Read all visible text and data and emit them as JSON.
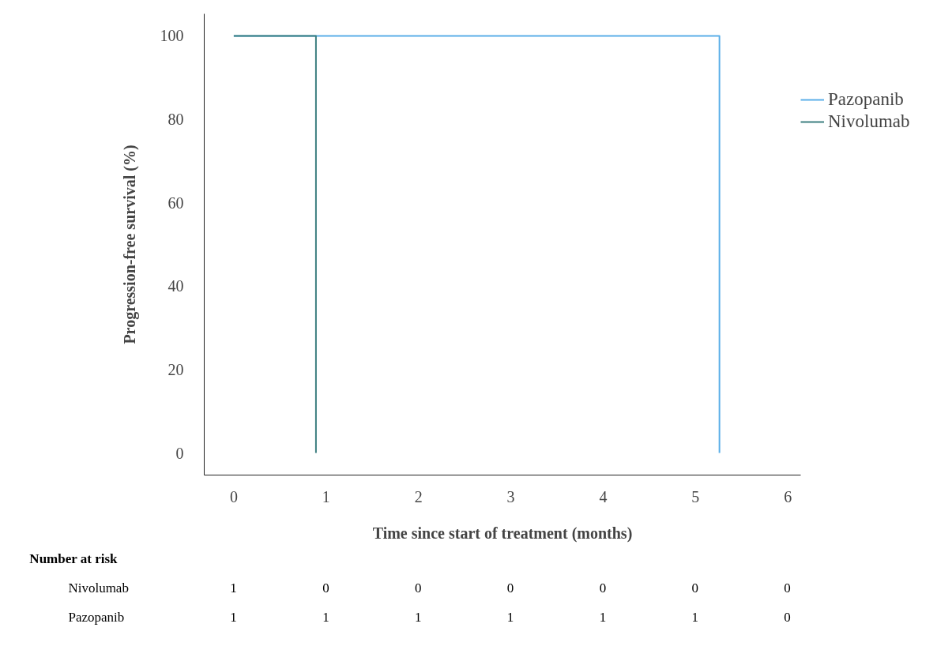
{
  "chart_data": {
    "type": "step",
    "xlabel": "Time since start of treatment (months)",
    "ylabel": "Progression-free survival (%)",
    "xlim": [
      -0.32,
      6.14
    ],
    "ylim": [
      -5.3,
      105.3
    ],
    "xticks": [
      0,
      1,
      2,
      3,
      4,
      5,
      6
    ],
    "yticks": [
      0,
      20,
      40,
      60,
      80,
      100
    ],
    "grid": false,
    "legend": "top right",
    "line_style": "solid",
    "marker": "none",
    "series": [
      {
        "name": "Pazopanib",
        "color": "#5aaee8",
        "x": [
          0,
          5.26
        ],
        "values": [
          100,
          0
        ]
      },
      {
        "name": "Nivolumab",
        "color": "#3d7f80",
        "x": [
          0,
          0.89
        ],
        "values": [
          100,
          0
        ]
      }
    ],
    "annotations": [
      "Number at risk",
      "Nivolumab",
      "1",
      "0",
      "0",
      "0",
      "0",
      "0",
      "0",
      "Pazopanib",
      "1",
      "1",
      "1",
      "1",
      "1",
      "1",
      "0"
    ]
  }
}
